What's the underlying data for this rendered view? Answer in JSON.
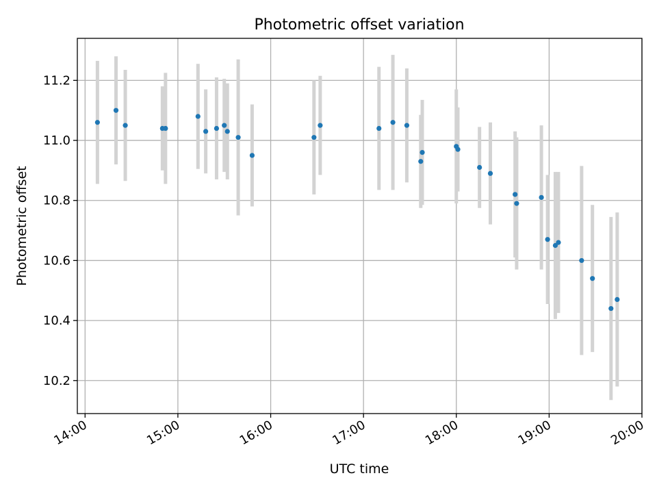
{
  "chart_data": {
    "type": "scatter",
    "title": "Photometric offset variation",
    "xlabel": "UTC time",
    "ylabel": "Photometric offset",
    "xlim": [
      "13:55",
      "20:00"
    ],
    "ylim": [
      10.09,
      11.34
    ],
    "x_ticks": [
      "14:00",
      "15:00",
      "16:00",
      "17:00",
      "18:00",
      "19:00",
      "20:00"
    ],
    "y_ticks": [
      "10.2",
      "10.4",
      "10.6",
      "10.8",
      "11.0",
      "11.2"
    ],
    "grid": true,
    "legend": "none",
    "colors": {
      "point": "#1f77b4",
      "errorbar": "#d3d3d3",
      "grid": "#b0b0b0"
    },
    "series": [
      {
        "points": [
          {
            "x": "14:08",
            "y": 11.06,
            "err": 0.205
          },
          {
            "x": "14:20",
            "y": 11.1,
            "err": 0.18
          },
          {
            "x": "14:26",
            "y": 11.05,
            "err": 0.185
          },
          {
            "x": "14:50",
            "y": 11.04,
            "err": 0.14
          },
          {
            "x": "14:52",
            "y": 11.04,
            "err": 0.185
          },
          {
            "x": "15:13",
            "y": 11.08,
            "err": 0.175
          },
          {
            "x": "15:18",
            "y": 11.03,
            "err": 0.14
          },
          {
            "x": "15:25",
            "y": 11.04,
            "err": 0.17
          },
          {
            "x": "15:30",
            "y": 11.05,
            "err": 0.155
          },
          {
            "x": "15:32",
            "y": 11.03,
            "err": 0.16
          },
          {
            "x": "15:39",
            "y": 11.01,
            "err": 0.26
          },
          {
            "x": "15:48",
            "y": 10.95,
            "err": 0.17
          },
          {
            "x": "16:28",
            "y": 11.01,
            "err": 0.19
          },
          {
            "x": "16:32",
            "y": 11.05,
            "err": 0.165
          },
          {
            "x": "17:10",
            "y": 11.04,
            "err": 0.205
          },
          {
            "x": "17:19",
            "y": 11.06,
            "err": 0.225
          },
          {
            "x": "17:28",
            "y": 11.05,
            "err": 0.19
          },
          {
            "x": "17:37",
            "y": 10.93,
            "err": 0.155
          },
          {
            "x": "17:38",
            "y": 10.96,
            "err": 0.175
          },
          {
            "x": "18:00",
            "y": 10.98,
            "err": 0.19
          },
          {
            "x": "18:01",
            "y": 10.97,
            "err": 0.14
          },
          {
            "x": "18:15",
            "y": 10.91,
            "err": 0.135
          },
          {
            "x": "18:22",
            "y": 10.89,
            "err": 0.17
          },
          {
            "x": "18:38",
            "y": 10.82,
            "err": 0.21
          },
          {
            "x": "18:39",
            "y": 10.79,
            "err": 0.22
          },
          {
            "x": "18:55",
            "y": 10.81,
            "err": 0.24
          },
          {
            "x": "18:59",
            "y": 10.67,
            "err": 0.215
          },
          {
            "x": "19:04",
            "y": 10.65,
            "err": 0.245
          },
          {
            "x": "19:06",
            "y": 10.66,
            "err": 0.235
          },
          {
            "x": "19:21",
            "y": 10.6,
            "err": 0.315
          },
          {
            "x": "19:28",
            "y": 10.54,
            "err": 0.245
          },
          {
            "x": "19:40",
            "y": 10.44,
            "err": 0.305
          },
          {
            "x": "19:44",
            "y": 10.47,
            "err": 0.29
          }
        ]
      }
    ]
  }
}
